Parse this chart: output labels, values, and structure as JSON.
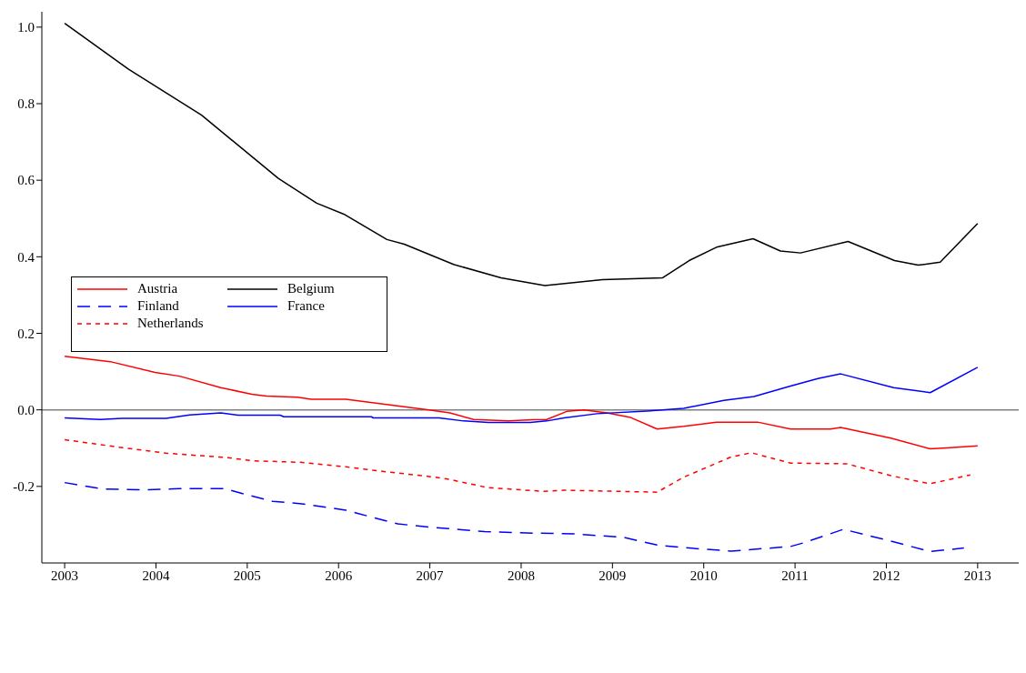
{
  "chart_data": {
    "type": "line",
    "xlim": [
      2002.75,
      2013.45
    ],
    "xticks": [
      2003,
      2004,
      2005,
      2006,
      2007,
      2008,
      2009,
      2010,
      2011,
      2012,
      2013
    ],
    "ylim": [
      -0.4,
      1.04
    ],
    "yticks": [
      {
        "value": -0.2,
        "label": "-0.2"
      },
      {
        "value": 0,
        "label": "0.0"
      },
      {
        "value": 0.2,
        "label": "0.2"
      },
      {
        "value": 0.4,
        "label": "0.4"
      },
      {
        "value": 0.6,
        "label": "0.6"
      },
      {
        "value": 0.8,
        "label": "0.8"
      },
      {
        "value": 1,
        "label": "1.0"
      }
    ],
    "grid": false,
    "legend": "left",
    "marker": "none",
    "ref_lines": [
      {
        "axis": "y",
        "value": 0,
        "color": "#808080"
      }
    ],
    "series": [
      {
        "name": "Austria",
        "color": "#ff0000",
        "line_style": "solid",
        "x": [
          2003.0,
          2003.5,
          2003.99,
          2004.26,
          2004.71,
          2005.05,
          2005.21,
          2005.55,
          2005.7,
          2006.08,
          2006.99,
          2007.22,
          2007.48,
          2007.86,
          2008.13,
          2008.28,
          2008.5,
          2008.69,
          2008.94,
          2009.2,
          2009.49,
          2009.78,
          2010.14,
          2010.59,
          2010.95,
          2011.39,
          2011.5,
          2012.05,
          2012.48,
          2012.7,
          2013.0
        ],
        "values": [
          0.14,
          0.126,
          0.098,
          0.088,
          0.058,
          0.041,
          0.036,
          0.033,
          0.028,
          0.028,
          0.0,
          -0.008,
          -0.025,
          -0.029,
          -0.026,
          -0.025,
          -0.004,
          0.0,
          -0.008,
          -0.02,
          -0.05,
          -0.043,
          -0.032,
          -0.032,
          -0.05,
          -0.05,
          -0.046,
          -0.074,
          -0.102,
          -0.099,
          -0.094
        ]
      },
      {
        "name": "Belgium",
        "color": "#000000",
        "line_style": "solid",
        "x": [
          2003.0,
          2003.7,
          2004.5,
          2005.34,
          2005.76,
          2006.07,
          2006.53,
          2006.72,
          2007.26,
          2007.78,
          2008.26,
          2008.89,
          2009.55,
          2009.84,
          2010.14,
          2010.54,
          2010.84,
          2011.06,
          2011.58,
          2012.09,
          2012.35,
          2012.59,
          2013.0
        ],
        "values": [
          1.01,
          0.89,
          0.77,
          0.605,
          0.54,
          0.51,
          0.445,
          0.433,
          0.38,
          0.345,
          0.325,
          0.34,
          0.345,
          0.39,
          0.425,
          0.447,
          0.415,
          0.41,
          0.44,
          0.39,
          0.378,
          0.386,
          0.487
        ]
      },
      {
        "name": "Finland",
        "color": "#0000ff",
        "line_style": "dashed",
        "x": [
          2003.0,
          2003.42,
          2003.88,
          2004.26,
          2004.75,
          2004.94,
          2005.28,
          2005.62,
          2006.08,
          2006.2,
          2006.65,
          2007.03,
          2007.6,
          2008.13,
          2008.58,
          2009.12,
          2009.49,
          2009.78,
          2010.3,
          2010.95,
          2011.1,
          2011.53,
          2012.05,
          2012.48,
          2012.85
        ],
        "values": [
          -0.19,
          -0.207,
          -0.209,
          -0.206,
          -0.206,
          -0.218,
          -0.239,
          -0.246,
          -0.262,
          -0.27,
          -0.298,
          -0.307,
          -0.318,
          -0.322,
          -0.324,
          -0.333,
          -0.353,
          -0.36,
          -0.369,
          -0.357,
          -0.347,
          -0.312,
          -0.343,
          -0.37,
          -0.361
        ]
      },
      {
        "name": "France",
        "color": "#0000ff",
        "line_style": "solid",
        "x": [
          2003.0,
          2003.39,
          2003.63,
          2004.11,
          2004.37,
          2004.71,
          2004.9,
          2005.36,
          2005.4,
          2006.36,
          2006.38,
          2007.1,
          2007.37,
          2007.64,
          2008.1,
          2008.28,
          2008.47,
          2008.83,
          2009.38,
          2009.78,
          2010.22,
          2010.55,
          2010.95,
          2011.25,
          2011.5,
          2012.08,
          2012.48,
          2013.0
        ],
        "values": [
          -0.021,
          -0.025,
          -0.022,
          -0.022,
          -0.013,
          -0.008,
          -0.014,
          -0.014,
          -0.018,
          -0.018,
          -0.021,
          -0.021,
          -0.029,
          -0.033,
          -0.033,
          -0.029,
          -0.021,
          -0.01,
          -0.003,
          0.004,
          0.025,
          0.035,
          0.062,
          0.082,
          0.094,
          0.058,
          0.045,
          0.111
        ]
      },
      {
        "name": "Netherlands",
        "color": "#ff0000",
        "line_style": "dotted",
        "x": [
          2003.0,
          2003.61,
          2004.11,
          2004.79,
          2005.05,
          2005.58,
          2006.08,
          2006.46,
          2006.99,
          2007.18,
          2007.63,
          2008.13,
          2008.25,
          2008.47,
          2009.49,
          2009.78,
          2010.3,
          2010.52,
          2010.95,
          2011.57,
          2012.05,
          2012.48,
          2012.92
        ],
        "values": [
          -0.078,
          -0.098,
          -0.113,
          -0.125,
          -0.133,
          -0.137,
          -0.149,
          -0.16,
          -0.174,
          -0.18,
          -0.203,
          -0.211,
          -0.213,
          -0.21,
          -0.215,
          -0.176,
          -0.123,
          -0.112,
          -0.139,
          -0.141,
          -0.172,
          -0.193,
          -0.17
        ]
      }
    ]
  }
}
